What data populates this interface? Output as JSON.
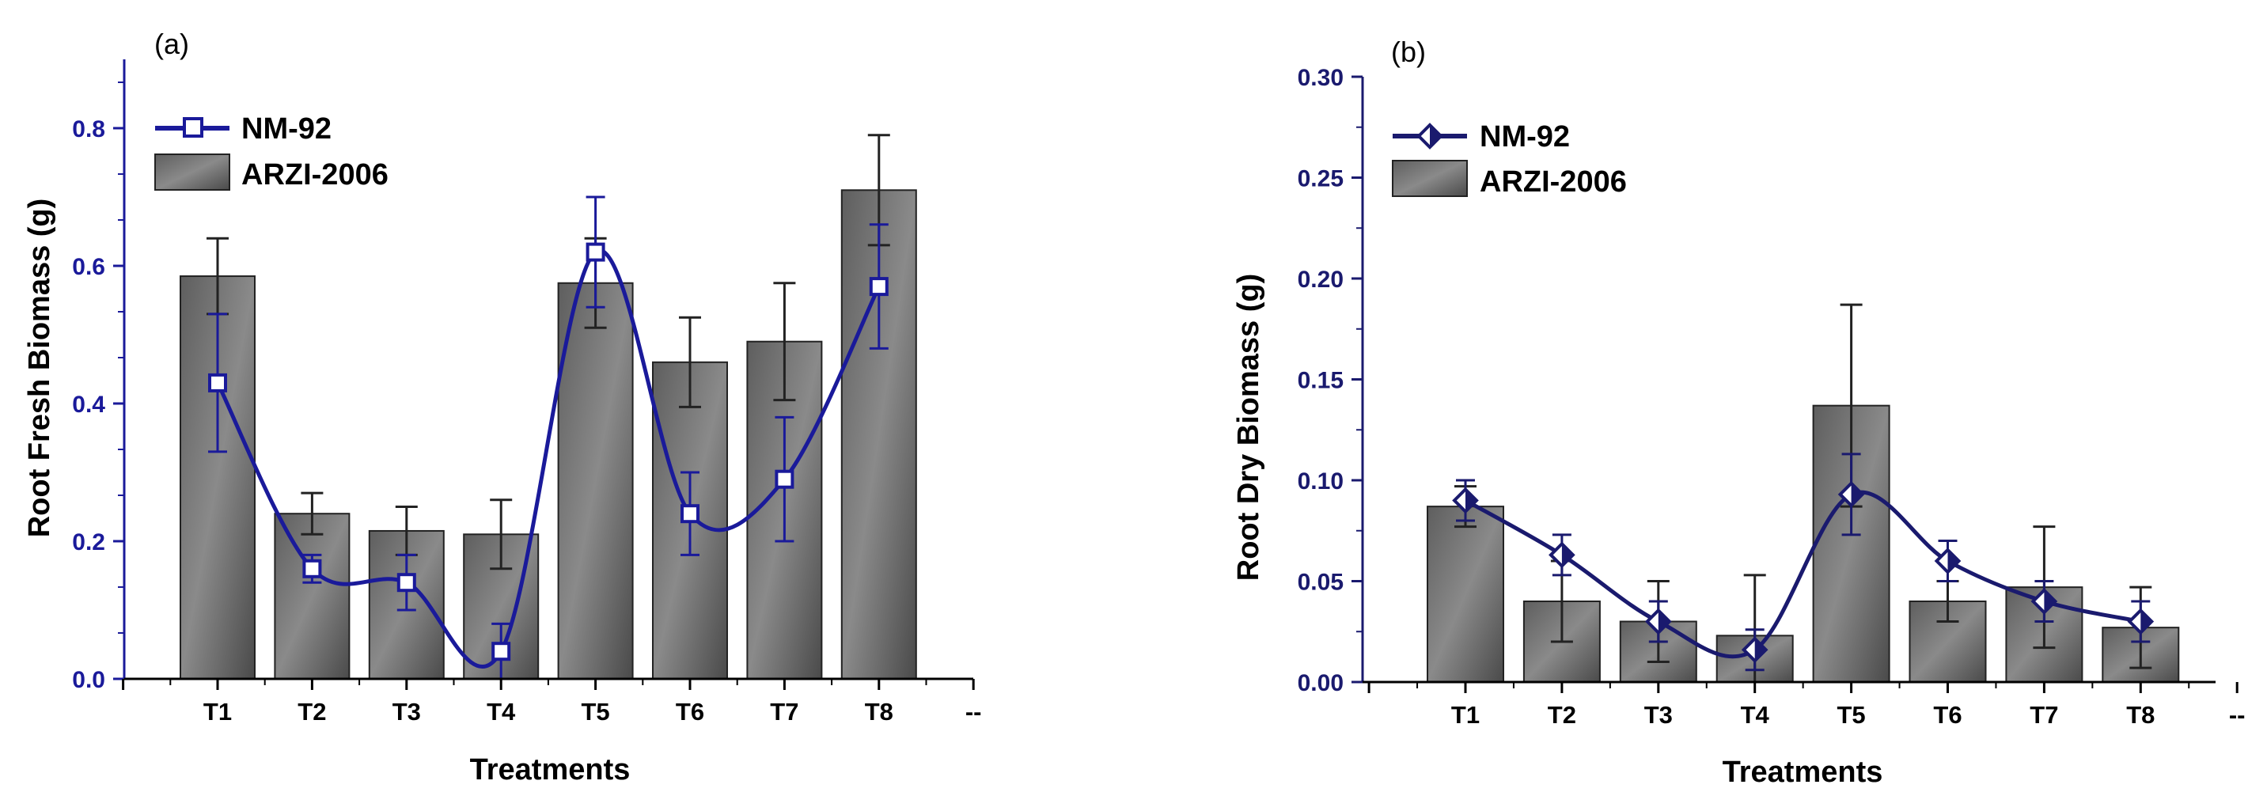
{
  "chart_data": [
    {
      "type": "bar",
      "panel_label": "(a)",
      "xlabel": "Treatments",
      "ylabel": "Root Fresh Biomass (g)",
      "ylim": [
        0,
        0.9
      ],
      "yticks": [
        "0.0",
        "0.2",
        "0.4",
        "0.6",
        "0.8"
      ],
      "ytick_values": [
        0,
        0.2,
        0.4,
        0.6,
        0.8
      ],
      "categories": [
        "T1",
        "T2",
        "T3",
        "T4",
        "T5",
        "T6",
        "T7",
        "T8"
      ],
      "extra_tick_label": "--",
      "legend_placement": "top-left",
      "series": [
        {
          "name": "NM-92",
          "kind": "line",
          "marker": "square",
          "color": "#1a1a9a",
          "values": [
            0.43,
            0.16,
            0.14,
            0.04,
            0.62,
            0.24,
            0.29,
            0.57
          ],
          "errors": [
            0.1,
            0.02,
            0.04,
            0.04,
            0.08,
            0.06,
            0.09,
            0.09
          ]
        },
        {
          "name": "ARZI-2006",
          "kind": "bar",
          "color": "#6f6f6f",
          "values": [
            0.585,
            0.24,
            0.215,
            0.21,
            0.575,
            0.46,
            0.49,
            0.71
          ],
          "errors": [
            0.055,
            0.03,
            0.035,
            0.05,
            0.065,
            0.065,
            0.085,
            0.08
          ]
        }
      ]
    },
    {
      "type": "bar",
      "panel_label": "(b)",
      "xlabel": "Treatments",
      "ylabel": "Root Dry Biomass (g)",
      "ylim": [
        0,
        0.3
      ],
      "yticks": [
        "0.00",
        "0.05",
        "0.10",
        "0.15",
        "0.20",
        "0.25",
        "0.30"
      ],
      "ytick_values": [
        0,
        0.05,
        0.1,
        0.15,
        0.2,
        0.25,
        0.3
      ],
      "categories": [
        "T1",
        "T2",
        "T3",
        "T4",
        "T5",
        "T6",
        "T7",
        "T8"
      ],
      "extra_tick_label": "--",
      "legend_placement": "top-left",
      "series": [
        {
          "name": "NM-92",
          "kind": "line",
          "marker": "diamond",
          "color": "#1a1a6e",
          "values": [
            0.09,
            0.063,
            0.03,
            0.016,
            0.093,
            0.06,
            0.04,
            0.03
          ],
          "errors": [
            0.01,
            0.01,
            0.01,
            0.01,
            0.02,
            0.01,
            0.01,
            0.01
          ]
        },
        {
          "name": "ARZI-2006",
          "kind": "bar",
          "color": "#6f6f6f",
          "values": [
            0.087,
            0.04,
            0.03,
            0.023,
            0.137,
            0.04,
            0.047,
            0.027
          ],
          "errors": [
            0.01,
            0.02,
            0.02,
            0.03,
            0.05,
            0.01,
            0.03,
            0.02
          ]
        }
      ]
    }
  ]
}
